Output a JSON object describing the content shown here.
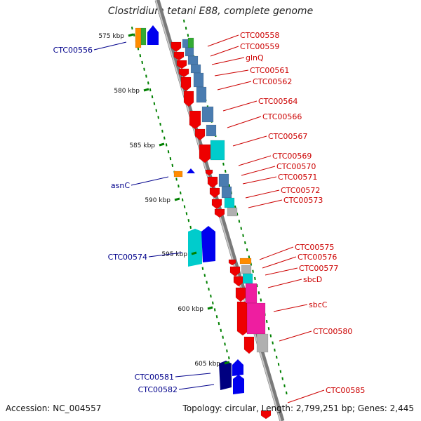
{
  "title": "Clostridium tetani E88, complete genome",
  "accession": {
    "label": "Accession:",
    "value": "NC_004557"
  },
  "topology": {
    "label": "Topology:",
    "value": "circular"
  },
  "length": {
    "label": "Length:",
    "value": "2,799,251 bp"
  },
  "genes": {
    "label": "Genes:",
    "value": "2,445"
  },
  "colors": {
    "backbone": "#888888",
    "forward_strand_label": "#00008b",
    "reverse_strand_label": "#cc0000",
    "tick": "#008000",
    "red": "#ee0000",
    "blue": "#0000ee",
    "navy": "#000080",
    "steel": "#4a7cb0",
    "cyan": "#00cccc",
    "magenta": "#ee1ea0",
    "gray": "#b0b0b0",
    "orange": "#ff8c00",
    "green": "#33aa33"
  },
  "kbp_ticks": [
    "575 kbp",
    "580 kbp",
    "585 kbp",
    "590 kbp",
    "595 kbp",
    "600 kbp",
    "605 kbp"
  ],
  "left_labels": [
    "CTC00556",
    "asnC",
    "CTC00574",
    "CTC00581",
    "CTC00582"
  ],
  "right_labels": [
    "CTC00558",
    "CTC00559",
    "glnQ",
    "CTC00561",
    "CTC00562",
    "CTC00564",
    "CTC00566",
    "CTC00567",
    "CTC00569",
    "CTC00570",
    "CTC00571",
    "CTC00572",
    "CTC00573",
    "CTC00575",
    "CTC00576",
    "CTC00577",
    "sbcD",
    "sbcC",
    "CTC00580",
    "CTC00585"
  ]
}
